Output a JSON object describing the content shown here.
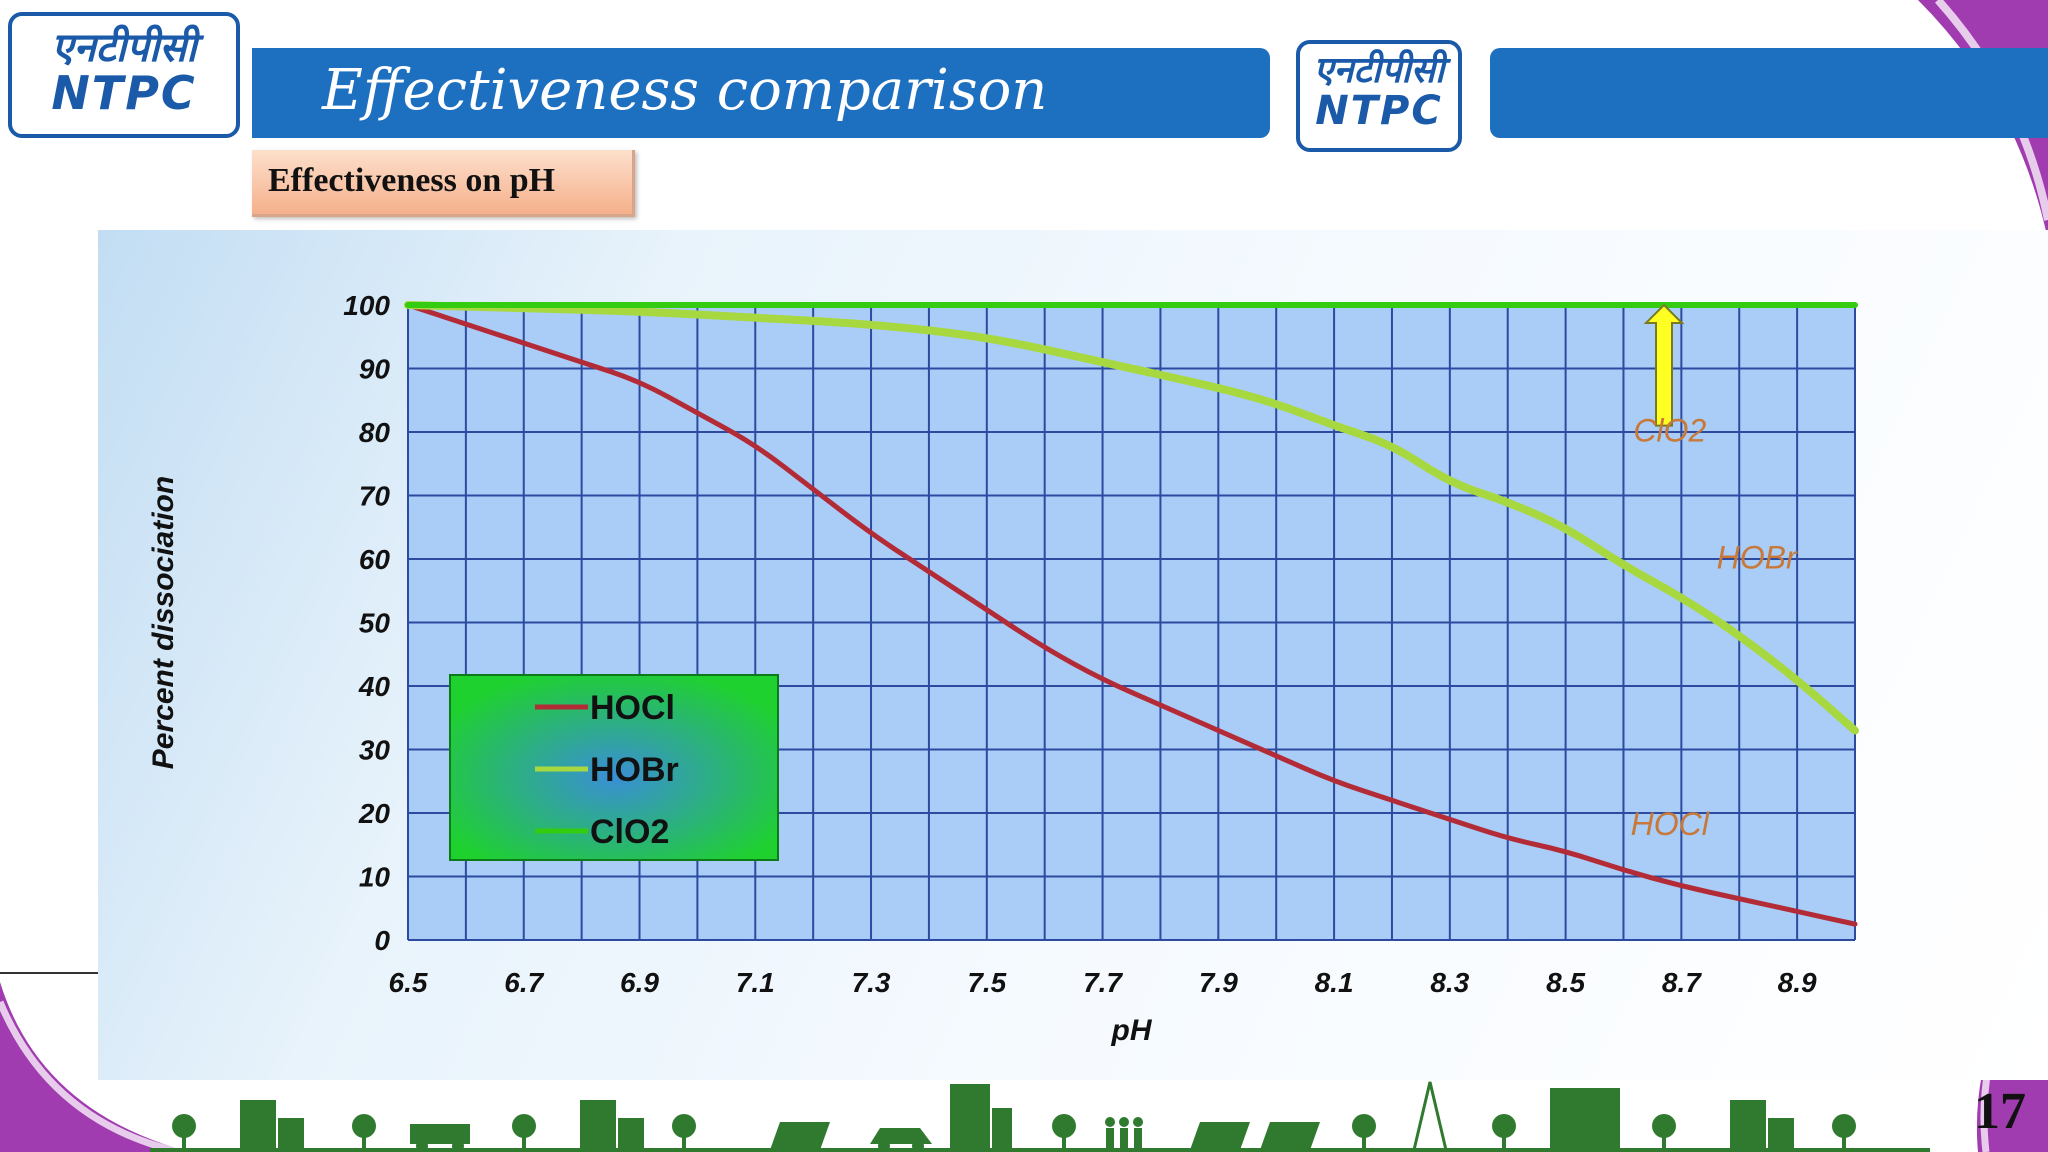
{
  "header": {
    "logo_hindi": "एनटीपीसी",
    "logo_english": "NTPC",
    "title": "Effectiveness comparison"
  },
  "subtitle": "Effectiveness on pH",
  "page_number": "17",
  "colors": {
    "title_bar": "#1d6fc0",
    "plot_bg": "#a9cdf7",
    "grid": "#2b4aa0",
    "hocl": "#b32b36",
    "hobr": "#a8d840",
    "clo2": "#33cc11",
    "legend_bg": "#22cc33",
    "arrow": "#ffff22",
    "curve_label": "#c87838"
  },
  "chart_data": {
    "type": "line",
    "xlabel": "pH",
    "ylabel": "Percent dissociation",
    "xlim": [
      6.5,
      9.0
    ],
    "ylim": [
      0,
      100
    ],
    "x_ticks": [
      "6.5",
      "6.7",
      "6.9",
      "7.1",
      "7.3",
      "7.5",
      "7.7",
      "7.9",
      "8.1",
      "8.3",
      "8.5",
      "8.7",
      "8.9"
    ],
    "y_ticks": [
      "0",
      "10",
      "20",
      "30",
      "40",
      "50",
      "60",
      "70",
      "80",
      "90",
      "100"
    ],
    "grid": true,
    "legend_position": "lower-left",
    "series": [
      {
        "name": "HOCl",
        "color": "#b32b36",
        "x": [
          6.5,
          6.6,
          6.7,
          6.8,
          6.9,
          7.0,
          7.1,
          7.2,
          7.3,
          7.4,
          7.5,
          7.6,
          7.7,
          7.8,
          7.9,
          8.0,
          8.1,
          8.2,
          8.3,
          8.4,
          8.5,
          8.6,
          8.7,
          8.8,
          8.9,
          9.0
        ],
        "y": [
          100,
          97,
          94,
          91,
          88,
          83,
          78,
          71,
          64,
          58,
          52,
          46,
          41,
          37,
          33,
          29,
          25,
          22,
          19,
          16,
          14,
          11,
          8.5,
          6.5,
          4.5,
          2.5
        ]
      },
      {
        "name": "HOBr",
        "color": "#a8d840",
        "x": [
          6.5,
          6.7,
          6.9,
          7.1,
          7.3,
          7.5,
          7.7,
          7.9,
          8.0,
          8.1,
          8.2,
          8.3,
          8.4,
          8.5,
          8.6,
          8.7,
          8.8,
          8.9,
          9.0
        ],
        "y": [
          100,
          99.5,
          99,
          98,
          97,
          95,
          91,
          87,
          84.5,
          81,
          78,
          72,
          69,
          65,
          59,
          54,
          48,
          41,
          33
        ]
      },
      {
        "name": "ClO2",
        "color": "#33cc11",
        "x": [
          6.5,
          9.0
        ],
        "y": [
          100,
          100
        ]
      }
    ],
    "annotations": [
      {
        "text": "ClO2",
        "x": 8.68,
        "y": 78.5
      },
      {
        "text": "HOBr",
        "x": 8.83,
        "y": 58.5
      },
      {
        "text": "HOCl",
        "x": 8.68,
        "y": 16.5
      }
    ],
    "arrow": {
      "x": 8.67,
      "y_from": 81,
      "y_to": 100
    }
  }
}
